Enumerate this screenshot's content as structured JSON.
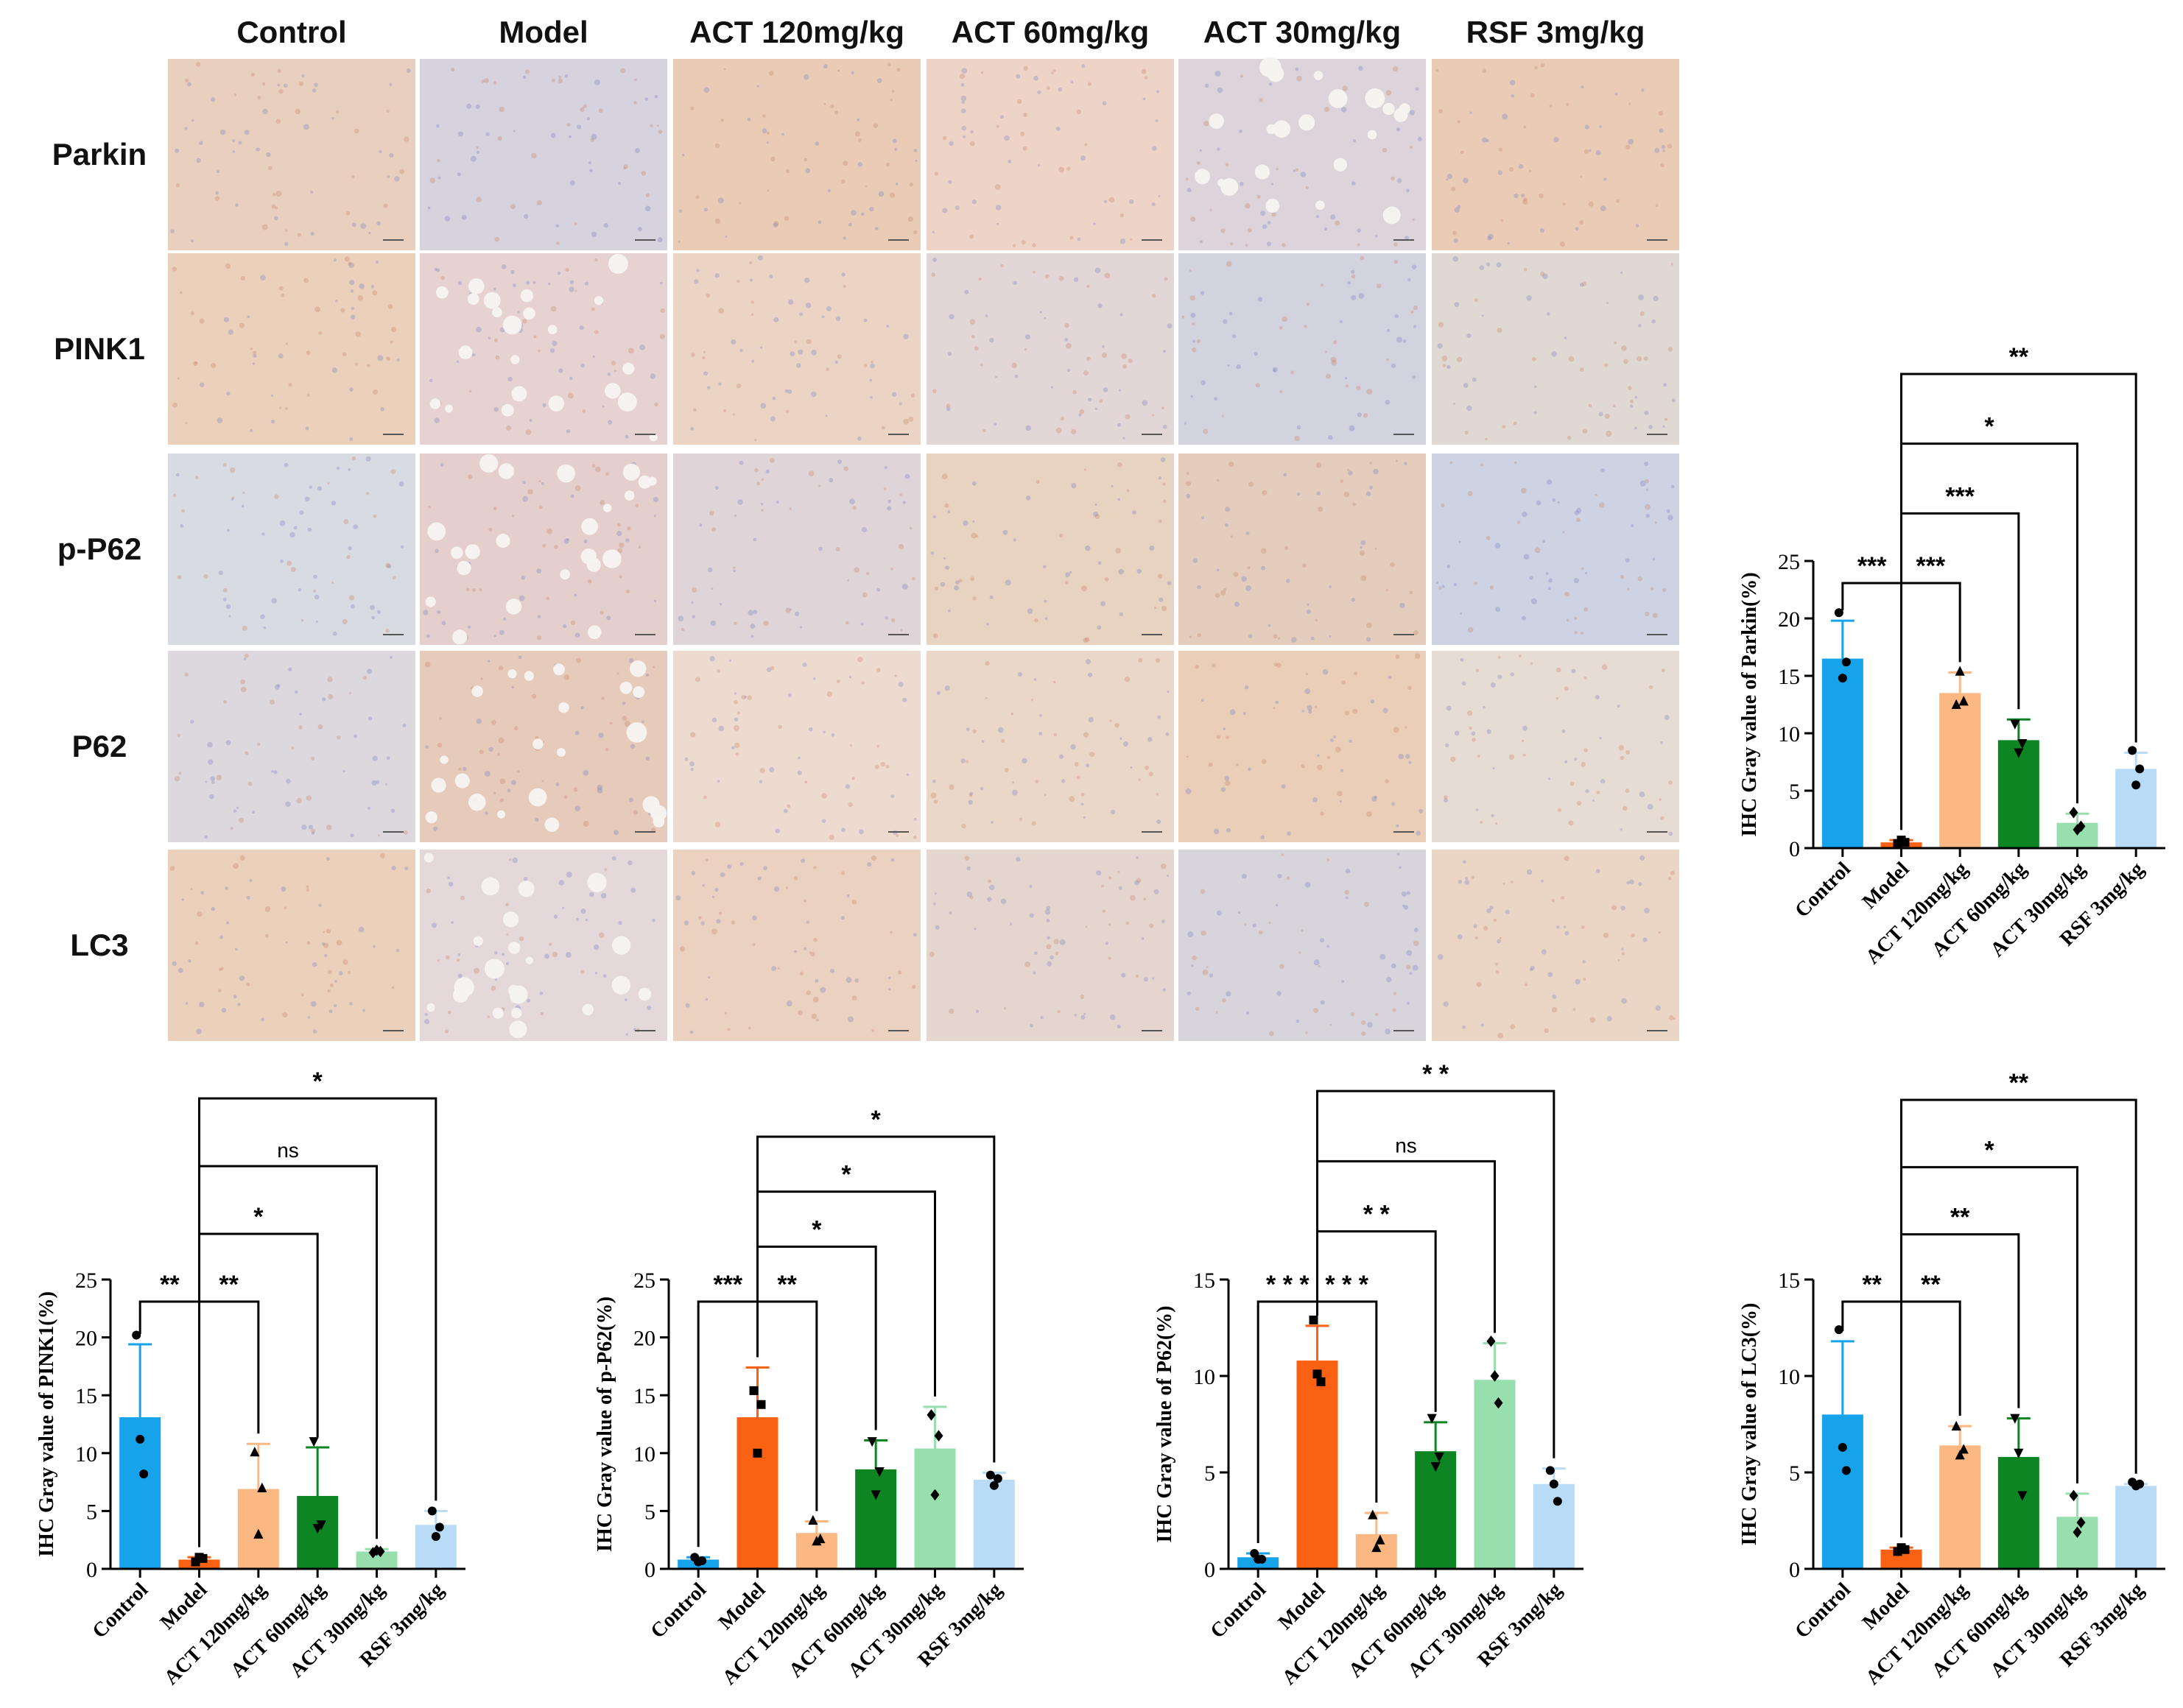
{
  "ihc": {
    "columns": [
      "Control",
      "Model",
      "ACT 120mg/kg",
      "ACT 60mg/kg",
      "ACT 30mg/kg",
      "RSF 3mg/kg"
    ],
    "rows": [
      "Parkin",
      "PINK1",
      "p-P62",
      "P62",
      "LC3"
    ],
    "tile_colors": [
      [
        "#e9cfbd",
        "#d6d2de",
        "#e9cbb6",
        "#eed4c7",
        "#dcd4da",
        "#eacbb6"
      ],
      [
        "#ebd0bb",
        "#e6d2d0",
        "#ecd4c5",
        "#e3d6d6",
        "#d3d2df",
        "#e0d8d2"
      ],
      [
        "#d9dbe2",
        "#e5cfcc",
        "#dfd5d8",
        "#e8d2c0",
        "#e4cdbd",
        "#cdd3e2"
      ],
      [
        "#dcd8de",
        "#e6caba",
        "#eedbd0",
        "#ead7c8",
        "#eaceb8",
        "#e7dcd3"
      ],
      [
        "#ebd0bb",
        "#e4d8da",
        "#ebd1bf",
        "#e4d6cf",
        "#d8d4dc",
        "#ebd6c6"
      ]
    ]
  },
  "bar_colors": [
    "#17a3ea",
    "#fb6112",
    "#fbb883",
    "#0d8523",
    "#97e0ad",
    "#b8dcf7"
  ],
  "point_markers": [
    "circle",
    "square",
    "triangle",
    "inverted-triangle",
    "diamond",
    "circle"
  ],
  "chart_data": [
    {
      "id": "parkin",
      "type": "bar",
      "ylabel": "IHC Gray value of Parkin(%)",
      "categories": [
        "Control",
        "Model",
        "ACT 120mg/kg",
        "ACT 60mg/kg",
        "ACT 30mg/kg",
        "RSF 3mg/kg"
      ],
      "values": [
        16.5,
        0.5,
        13.5,
        9.4,
        2.2,
        6.9
      ],
      "errors": [
        3.3,
        0.2,
        1.8,
        1.8,
        0.8,
        1.4
      ],
      "points": [
        [
          20.5,
          14.8,
          16.2
        ],
        [
          0.4,
          0.7,
          0.5
        ],
        [
          12.5,
          15.4,
          12.8
        ],
        [
          10.8,
          8.3,
          9.1
        ],
        [
          3.1,
          1.6,
          1.9
        ],
        [
          8.5,
          5.5,
          6.9
        ]
      ],
      "ylim": [
        0,
        25
      ],
      "yticks": [
        0,
        5,
        10,
        15,
        20,
        25
      ],
      "annotations": [
        {
          "from": 0,
          "to": 1,
          "label": "***"
        },
        {
          "from": 1,
          "to": 2,
          "label": "***"
        },
        {
          "from": 1,
          "to": 3,
          "label": "***"
        },
        {
          "from": 1,
          "to": 4,
          "label": "*"
        },
        {
          "from": 1,
          "to": 5,
          "label": "**"
        }
      ]
    },
    {
      "id": "pink1",
      "type": "bar",
      "ylabel": "IHC Gray value of PINK1(%)",
      "categories": [
        "Control",
        "Model",
        "ACT 120mg/kg",
        "ACT 60mg/kg",
        "ACT 30mg/kg",
        "RSF 3mg/kg"
      ],
      "values": [
        13.1,
        0.8,
        6.9,
        6.3,
        1.5,
        3.8
      ],
      "errors": [
        6.3,
        0.2,
        3.9,
        4.2,
        0.2,
        1.2
      ],
      "points": [
        [
          20.2,
          11.2,
          8.2
        ],
        [
          0.6,
          1.0,
          0.9
        ],
        [
          10.1,
          3.0,
          7.0
        ],
        [
          11.0,
          3.5,
          3.8
        ],
        [
          1.4,
          1.6,
          1.5
        ],
        [
          5.0,
          2.8,
          3.6
        ]
      ],
      "ylim": [
        0,
        25
      ],
      "yticks": [
        0,
        5,
        10,
        15,
        20,
        25
      ],
      "annotations": [
        {
          "from": 0,
          "to": 1,
          "label": "**"
        },
        {
          "from": 1,
          "to": 2,
          "label": "**"
        },
        {
          "from": 1,
          "to": 3,
          "label": "*"
        },
        {
          "from": 1,
          "to": 4,
          "label": "ns"
        },
        {
          "from": 1,
          "to": 5,
          "label": "*"
        }
      ]
    },
    {
      "id": "pp62",
      "type": "bar",
      "ylabel": "IHC Gray value of p-P62(%)",
      "categories": [
        "Control",
        "Model",
        "ACT 120mg/kg",
        "ACT 60mg/kg",
        "ACT 30mg/kg",
        "RSF 3mg/kg"
      ],
      "values": [
        0.8,
        13.1,
        3.1,
        8.6,
        10.4,
        7.7
      ],
      "errors": [
        0.2,
        4.3,
        1.0,
        2.5,
        3.6,
        0.6
      ],
      "points": [
        [
          1.0,
          0.6,
          0.7
        ],
        [
          15.4,
          10.0,
          14.2
        ],
        [
          4.2,
          2.4,
          2.6
        ],
        [
          11.0,
          6.4,
          8.4
        ],
        [
          13.3,
          6.4,
          11.5
        ],
        [
          8.1,
          7.2,
          7.8
        ]
      ],
      "ylim": [
        0,
        25
      ],
      "yticks": [
        0,
        5,
        10,
        15,
        20,
        25
      ],
      "annotations": [
        {
          "from": 0,
          "to": 1,
          "label": "***"
        },
        {
          "from": 1,
          "to": 2,
          "label": "**"
        },
        {
          "from": 1,
          "to": 3,
          "label": "*"
        },
        {
          "from": 1,
          "to": 4,
          "label": "*"
        },
        {
          "from": 1,
          "to": 5,
          "label": "*"
        }
      ]
    },
    {
      "id": "p62",
      "type": "bar",
      "ylabel": "IHC Gray value of P62(%)",
      "categories": [
        "Control",
        "Model",
        "ACT 120mg/kg",
        "ACT 60mg/kg",
        "ACT 30mg/kg",
        "RSF 3mg/kg"
      ],
      "values": [
        0.6,
        10.8,
        1.8,
        6.1,
        9.8,
        4.4
      ],
      "errors": [
        0.2,
        1.8,
        1.1,
        1.5,
        1.9,
        0.8
      ],
      "points": [
        [
          0.8,
          0.5,
          0.5
        ],
        [
          12.9,
          10.1,
          9.7
        ],
        [
          2.8,
          1.1,
          1.5
        ],
        [
          7.8,
          5.3,
          5.8
        ],
        [
          11.8,
          10.0,
          8.6
        ],
        [
          5.1,
          4.4,
          3.5
        ]
      ],
      "ylim": [
        0,
        15
      ],
      "yticks": [
        0,
        5,
        10,
        15
      ],
      "annotations": [
        {
          "from": 0,
          "to": 1,
          "label": "* * *"
        },
        {
          "from": 1,
          "to": 2,
          "label": "* * *"
        },
        {
          "from": 1,
          "to": 3,
          "label": "* *"
        },
        {
          "from": 1,
          "to": 4,
          "label": "ns"
        },
        {
          "from": 1,
          "to": 5,
          "label": "* *"
        }
      ]
    },
    {
      "id": "lc3",
      "type": "bar",
      "ylabel": "IHC Gray value of LC3(%)",
      "categories": [
        "Control",
        "Model",
        "ACT 120mg/kg",
        "ACT 60mg/kg",
        "ACT 30mg/kg",
        "RSF 3mg/kg"
      ],
      "values": [
        8.0,
        1.0,
        6.4,
        5.8,
        2.7,
        4.3
      ],
      "errors": [
        3.8,
        0.1,
        1.0,
        2.0,
        1.2,
        0.1
      ],
      "points": [
        [
          12.4,
          6.3,
          5.1
        ],
        [
          0.9,
          1.1,
          1.0
        ],
        [
          7.4,
          5.9,
          6.2
        ],
        [
          7.8,
          6.0,
          3.8
        ],
        [
          3.8,
          1.9,
          2.4
        ],
        [
          4.5,
          4.3,
          4.4
        ]
      ],
      "ylim": [
        0,
        15
      ],
      "yticks": [
        0,
        5,
        10,
        15
      ],
      "annotations": [
        {
          "from": 0,
          "to": 1,
          "label": "**"
        },
        {
          "from": 1,
          "to": 2,
          "label": "**"
        },
        {
          "from": 1,
          "to": 3,
          "label": "**"
        },
        {
          "from": 1,
          "to": 4,
          "label": "*"
        },
        {
          "from": 1,
          "to": 5,
          "label": "**"
        }
      ]
    }
  ]
}
